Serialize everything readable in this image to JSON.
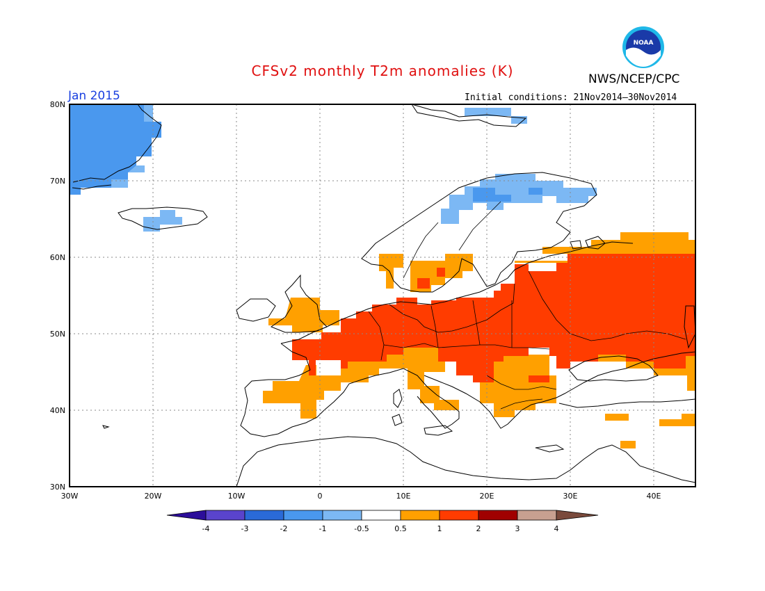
{
  "header": {
    "title": "CFSv2 monthly T2m anomalies (K)",
    "agency": "NWS/NCEP/CPC",
    "logo_text": "NOAA",
    "month": "Jan 2015",
    "initial_conditions": "Initial conditions: 21Nov2014–30Nov2014"
  },
  "map": {
    "projection": "lat-lon",
    "lon_range": [
      -30,
      45
    ],
    "lat_range": [
      30,
      80
    ],
    "lat_labels": [
      "80N",
      "70N",
      "60N",
      "50N",
      "40N",
      "30N"
    ],
    "lon_labels": [
      "30W",
      "20W",
      "10W",
      "0",
      "10E",
      "20E",
      "30E",
      "40E"
    ],
    "grid": "dotted"
  },
  "colorbar": {
    "labels": [
      "-4",
      "-3",
      "-2",
      "-1",
      "-0.5",
      "0.5",
      "1",
      "2",
      "3",
      "4"
    ],
    "colors": [
      "#2c0e9a",
      "#5a44cc",
      "#2a6ad8",
      "#4a98ee",
      "#7cb8f4",
      "#ffffff",
      "#ffa000",
      "#ff3c00",
      "#a00000",
      "#c8a090",
      "#7a4a3c"
    ]
  },
  "regions": [
    {
      "name": "greenland-cold",
      "category": "-2 to -1",
      "color": "#4a98ee"
    },
    {
      "name": "greenland-edge",
      "category": "-1 to -0.5",
      "color": "#7cb8f4"
    },
    {
      "name": "iceland-cold",
      "category": "-1 to -0.5",
      "color": "#7cb8f4"
    },
    {
      "name": "svalbard-cold",
      "category": "-1 to -0.5",
      "color": "#7cb8f4"
    },
    {
      "name": "scandinavia-north-cold",
      "category": "-1 to -0.5",
      "color": "#7cb8f4"
    },
    {
      "name": "western-europe-warm",
      "category": "0.5 to 1",
      "color": "#ffa000"
    },
    {
      "name": "central-eastern-europe-very-warm",
      "category": "1 to 2",
      "color": "#ff3c00"
    }
  ]
}
